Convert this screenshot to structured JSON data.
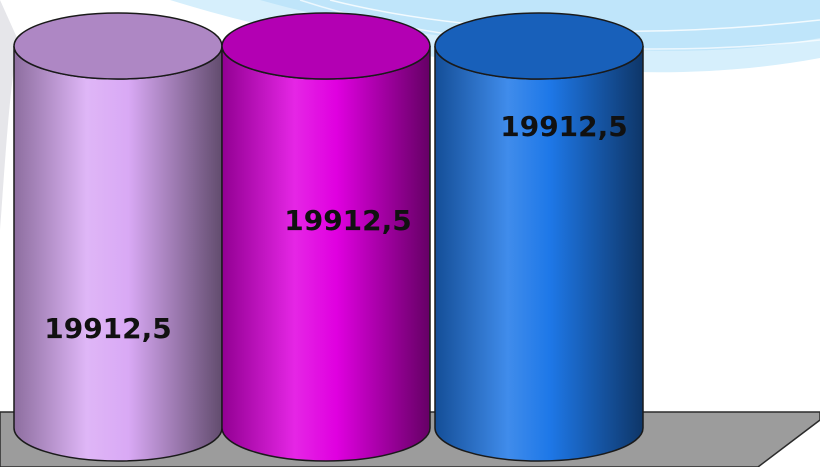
{
  "chart_data": {
    "type": "bar",
    "style": "3d-cylinder",
    "categories": [
      "",
      "",
      ""
    ],
    "values": [
      19912.5,
      19912.5,
      19912.5
    ],
    "data_labels": [
      "19912,5",
      "19912,5",
      "19912,5"
    ],
    "series_colors": [
      "#d9a9f5",
      "#e000e0",
      "#1e78e8"
    ],
    "title": "",
    "xlabel": "",
    "ylabel": "",
    "grid": false,
    "legend": "none"
  }
}
